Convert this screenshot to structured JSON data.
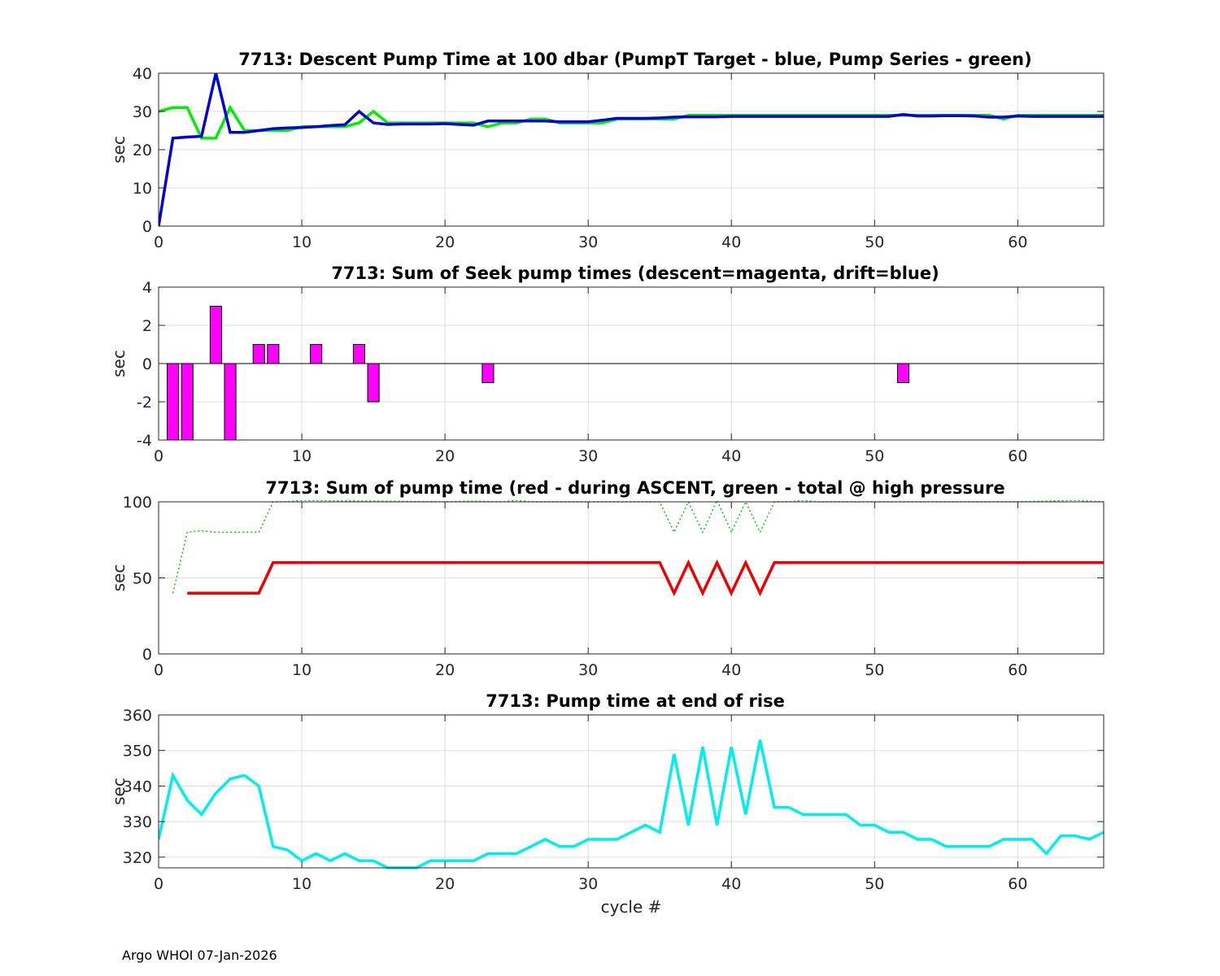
{
  "footer": "Argo WHOI 07-Jan-2026",
  "chart_data": [
    {
      "type": "line",
      "title": "7713: Descent Pump Time at 100 dbar (PumpT Target - blue, Pump Series - green)",
      "ylabel": "sec",
      "xlabel": "",
      "xlim": [
        0,
        66
      ],
      "ylim": [
        0,
        40
      ],
      "xticks": [
        0,
        10,
        20,
        30,
        40,
        50,
        60
      ],
      "yticks": [
        0,
        10,
        20,
        30,
        40
      ],
      "grid": true,
      "series": [
        {
          "color": "#00ee00",
          "style": "solid",
          "width": 3.5,
          "x": [
            0,
            1,
            2,
            3,
            4,
            5,
            6,
            7,
            8,
            9,
            10,
            11,
            12,
            13,
            14,
            15,
            16,
            17,
            18,
            19,
            20,
            21,
            22,
            23,
            24,
            25,
            26,
            27,
            28,
            29,
            30,
            31,
            32,
            33,
            34,
            35,
            36,
            37,
            38,
            39,
            40,
            41,
            42,
            43,
            44,
            45,
            46,
            47,
            48,
            49,
            50,
            51,
            52,
            53,
            54,
            55,
            56,
            57,
            58,
            59,
            60,
            61,
            62,
            63,
            64,
            65,
            66
          ],
          "y": [
            30,
            31,
            31,
            23,
            23,
            31,
            25,
            25,
            25,
            25,
            26,
            26,
            26,
            26,
            27,
            30,
            27,
            27,
            27,
            27,
            27,
            27,
            27,
            26,
            27,
            27,
            28,
            28,
            27,
            27,
            27,
            27,
            28,
            28,
            28,
            28,
            28,
            29,
            29,
            29,
            29,
            29,
            29,
            29,
            29,
            29,
            29,
            29,
            29,
            29,
            29,
            29,
            29,
            29,
            29,
            29,
            29,
            29,
            29,
            28,
            29,
            29,
            29,
            29,
            29,
            29,
            29
          ]
        },
        {
          "color": "#0000dd",
          "style": "solid",
          "width": 3.5,
          "x": [
            0,
            1,
            2,
            3,
            4,
            5,
            6,
            7,
            8,
            9,
            10,
            11,
            12,
            13,
            14,
            15,
            16,
            17,
            18,
            19,
            20,
            21,
            22,
            23,
            24,
            25,
            26,
            27,
            28,
            29,
            30,
            31,
            32,
            33,
            34,
            35,
            36,
            37,
            38,
            39,
            40,
            41,
            42,
            43,
            44,
            45,
            46,
            47,
            48,
            49,
            50,
            51,
            52,
            53,
            54,
            55,
            56,
            57,
            58,
            59,
            60,
            61,
            62,
            63,
            64,
            65,
            66
          ],
          "y": [
            0,
            23,
            23.3,
            23.5,
            40,
            24.5,
            24.5,
            25,
            25.5,
            25.7,
            25.8,
            26,
            26.3,
            26.5,
            30,
            27,
            26.6,
            26.7,
            26.7,
            26.7,
            26.8,
            26.6,
            26.4,
            27.5,
            27.5,
            27.5,
            27.5,
            27.5,
            27.3,
            27.3,
            27.3,
            27.7,
            28.2,
            28.2,
            28.2,
            28.3,
            28.5,
            28.6,
            28.6,
            28.6,
            28.7,
            28.7,
            28.7,
            28.7,
            28.7,
            28.7,
            28.7,
            28.7,
            28.7,
            28.7,
            28.7,
            28.7,
            29.2,
            28.8,
            28.8,
            28.9,
            28.9,
            28.8,
            28.5,
            28.5,
            28.8,
            28.7,
            28.7,
            28.7,
            28.7,
            28.7,
            28.7
          ]
        }
      ]
    },
    {
      "type": "bar",
      "title": "7713: Sum of Seek pump times (descent=magenta, drift=blue)",
      "ylabel": "sec",
      "xlabel": "",
      "xlim": [
        0,
        66
      ],
      "ylim": [
        -4,
        4
      ],
      "xticks": [
        0,
        10,
        20,
        30,
        40,
        50,
        60
      ],
      "yticks": [
        -4,
        -2,
        0,
        2,
        4
      ],
      "grid": true,
      "bar_color": "#ff00ff",
      "x": [
        1,
        2,
        4,
        5,
        7,
        8,
        11,
        14,
        15,
        23,
        52
      ],
      "values": [
        -4,
        -4,
        3,
        -4,
        1,
        1,
        1,
        1,
        -2,
        -1,
        -1
      ]
    },
    {
      "type": "line",
      "title": "7713: Sum of pump time (red - during ASCENT, green - total @ high pressure",
      "ylabel": "sec",
      "xlabel": "",
      "xlim": [
        0,
        66
      ],
      "ylim": [
        0,
        100
      ],
      "xticks": [
        0,
        10,
        20,
        30,
        40,
        50,
        60
      ],
      "yticks": [
        0,
        50,
        100
      ],
      "grid": true,
      "series": [
        {
          "color": "#00cc00",
          "style": "dotted",
          "width": 1.5,
          "x": [
            1,
            2,
            3,
            4,
            5,
            6,
            7,
            8,
            9,
            10,
            20,
            22,
            24,
            25,
            26,
            30,
            35,
            36,
            37,
            38,
            39,
            40,
            41,
            42,
            43,
            44,
            45,
            46,
            50,
            60,
            64,
            66
          ],
          "y": [
            40,
            80,
            81,
            80,
            80,
            80,
            80,
            100,
            100,
            101,
            100,
            100.5,
            100,
            101,
            100,
            100,
            100,
            80,
            100,
            80,
            101,
            80,
            100,
            80,
            100,
            100,
            101,
            100,
            100,
            100,
            101,
            100
          ]
        },
        {
          "color": "#ee0000",
          "style": "solid",
          "width": 3.5,
          "x": [
            2,
            3,
            4,
            5,
            6,
            7,
            8,
            9,
            10,
            20,
            30,
            35,
            36,
            37,
            38,
            39,
            40,
            41,
            42,
            43,
            44,
            50,
            60,
            66
          ],
          "y": [
            40,
            40,
            40,
            40,
            40,
            40,
            60,
            60,
            60,
            60,
            60,
            60,
            40,
            60,
            40,
            60,
            40,
            60,
            40,
            60,
            60,
            60,
            60,
            60
          ]
        }
      ]
    },
    {
      "type": "line",
      "title": "7713: Pump time at end of rise",
      "ylabel": "sec",
      "xlabel": "cycle #",
      "xlim": [
        0,
        66
      ],
      "ylim": [
        317,
        360
      ],
      "xticks": [
        0,
        10,
        20,
        30,
        40,
        50,
        60
      ],
      "yticks": [
        320,
        330,
        340,
        350,
        360
      ],
      "grid": true,
      "series": [
        {
          "color": "#00eeee",
          "style": "solid",
          "width": 3.5,
          "x": [
            0,
            1,
            2,
            3,
            4,
            5,
            6,
            7,
            8,
            9,
            10,
            11,
            12,
            13,
            14,
            15,
            16,
            17,
            18,
            19,
            20,
            21,
            22,
            23,
            24,
            25,
            26,
            27,
            28,
            29,
            30,
            31,
            32,
            33,
            34,
            35,
            36,
            37,
            38,
            39,
            40,
            41,
            42,
            43,
            44,
            45,
            46,
            47,
            48,
            49,
            50,
            51,
            52,
            53,
            54,
            55,
            56,
            57,
            58,
            59,
            60,
            61,
            62,
            63,
            64,
            65,
            66
          ],
          "y": [
            325,
            343,
            336,
            332,
            338,
            342,
            343,
            340,
            323,
            322,
            319,
            321,
            319,
            321,
            319,
            319,
            317,
            317,
            317,
            319,
            319,
            319,
            319,
            321,
            321,
            321,
            323,
            325,
            323,
            323,
            325,
            325,
            325,
            327,
            329,
            327,
            349,
            329,
            351,
            329,
            351,
            332,
            353,
            334,
            334,
            332,
            332,
            332,
            332,
            329,
            329,
            327,
            327,
            325,
            325,
            323,
            323,
            323,
            323,
            325,
            325,
            325,
            321,
            326,
            326,
            325,
            327
          ]
        }
      ]
    }
  ]
}
